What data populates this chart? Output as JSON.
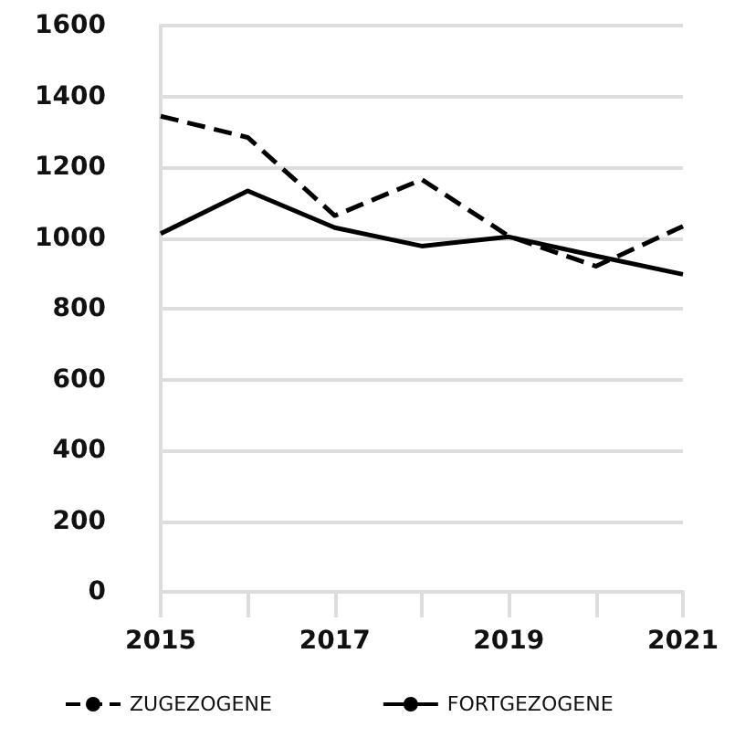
{
  "chart_data": {
    "type": "line",
    "x": [
      2015,
      2016,
      2017,
      2018,
      2019,
      2020,
      2021
    ],
    "series": [
      {
        "name": "ZUGEZOGENE",
        "color": "#000000",
        "line_style": "dashed",
        "values": [
          1344,
          1284,
          1063,
          1165,
          1005,
          920,
          1033
        ]
      },
      {
        "name": "FORTGEZOGENE",
        "color": "#000000",
        "line_style": "solid",
        "values": [
          1012,
          1133,
          1029,
          977,
          1003,
          949,
          897
        ]
      }
    ],
    "xlim": [
      2015,
      2021
    ],
    "xticks": [
      2015,
      {
        "value": 2016,
        "label": null
      },
      2017,
      {
        "value": 2018,
        "label": null
      },
      2019,
      {
        "value": 2020,
        "label": null
      },
      2021
    ],
    "ylim": [
      0,
      1600
    ],
    "yticks": [
      0,
      200,
      400,
      600,
      800,
      1000,
      1200,
      1400,
      1600
    ],
    "grid": "y",
    "legend": "bottom left",
    "marker": "none"
  }
}
